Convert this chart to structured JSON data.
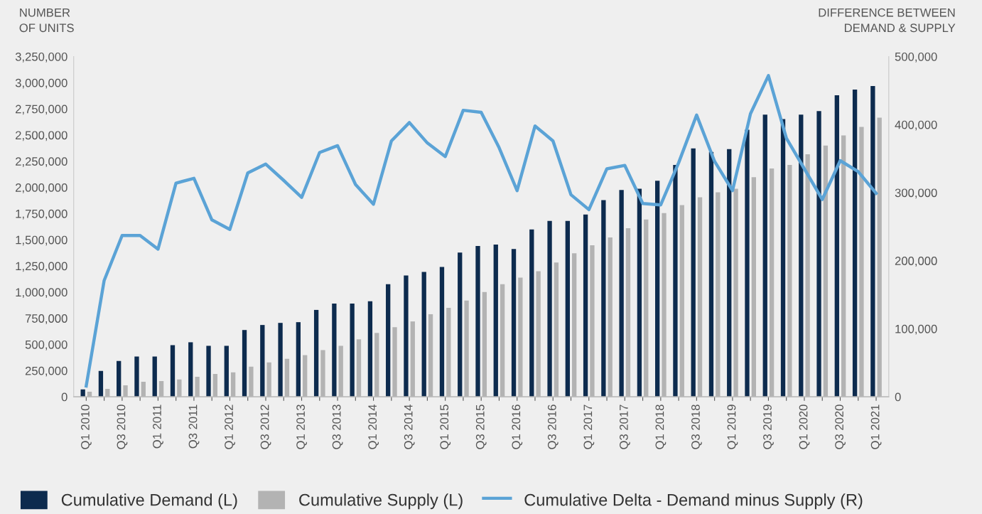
{
  "chart_data": {
    "type": "bar",
    "categories": [
      "Q1 2010",
      null,
      "Q3 2010",
      null,
      "Q1 2011",
      null,
      "Q3 2011",
      null,
      "Q1 2012",
      null,
      "Q3 2012",
      null,
      "Q1 2013",
      null,
      "Q3 2013",
      null,
      "Q1 2014",
      null,
      "Q3 2014",
      null,
      "Q1 2015",
      null,
      "Q3 2015",
      null,
      "Q1 2016",
      null,
      "Q3 2016",
      null,
      "Q1 2017",
      null,
      "Q3 2017",
      null,
      "Q1 2018",
      null,
      "Q3 2018",
      null,
      "Q1 2019",
      null,
      "Q3 2019",
      null,
      "Q1 2020",
      null,
      "Q3 2020",
      null,
      "Q1 2021"
    ],
    "ylabel": "NUMBER\nOF UNITS",
    "y2label": "DIFFERENCE BETWEEN\nDEMAND & SUPPLY",
    "series": [
      {
        "name": "Cumulative Demand (L)",
        "color": "#0d2b4e",
        "values": [
          70000,
          247000,
          343000,
          384000,
          384000,
          494000,
          521000,
          487000,
          487000,
          638000,
          686000,
          706000,
          713000,
          830000,
          891000,
          891000,
          912000,
          1076000,
          1159000,
          1193000,
          1241000,
          1378000,
          1440000,
          1454000,
          1412000,
          1598000,
          1680000,
          1680000,
          1741000,
          1879000,
          1975000,
          1988000,
          2064000,
          2215000,
          2372000,
          2338000,
          2365000,
          2551000,
          2695000,
          2653000,
          2695000,
          2729000,
          2880000,
          2935000,
          2969000
        ]
      },
      {
        "name": "Cumulative Supply (L)",
        "color": "#b3b3b3",
        "values": [
          48000,
          75000,
          110000,
          144000,
          151000,
          165000,
          192000,
          219000,
          233000,
          288000,
          329000,
          363000,
          398000,
          446000,
          487000,
          549000,
          610000,
          665000,
          720000,
          789000,
          850000,
          919000,
          1001000,
          1076000,
          1138000,
          1200000,
          1282000,
          1371000,
          1447000,
          1522000,
          1611000,
          1693000,
          1755000,
          1831000,
          1906000,
          1954000,
          1988000,
          2098000,
          2180000,
          2215000,
          2317000,
          2400000,
          2496000,
          2578000,
          2667000
        ]
      },
      {
        "name": "Cumulative Delta - Demand minus Supply (R)",
        "type": "line",
        "axis": "y2",
        "color": "#5ba3d6",
        "values": [
          16000,
          171000,
          237000,
          237000,
          217000,
          314000,
          321000,
          260000,
          246000,
          329000,
          342000,
          318000,
          293000,
          359000,
          369000,
          312000,
          283000,
          376000,
          403000,
          373000,
          353000,
          421000,
          418000,
          366000,
          303000,
          398000,
          376000,
          297000,
          275000,
          335000,
          340000,
          284000,
          282000,
          344000,
          414000,
          346000,
          303000,
          416000,
          472000,
          380000,
          335000,
          290000,
          347000,
          331000,
          299000
        ]
      }
    ],
    "ylim": [
      0,
      3250000
    ],
    "yticks": [
      0,
      {
        "value": 250000,
        "label": "250,000"
      },
      {
        "value": 500000,
        "label": "500,000"
      },
      {
        "value": 750000,
        "label": "750,000"
      },
      {
        "value": 1000000,
        "label": "1,000,000"
      },
      {
        "value": 1250000,
        "label": "1,250,000"
      },
      {
        "value": 1500000,
        "label": "1,500,000"
      },
      {
        "value": 1750000,
        "label": "1,750,000"
      },
      {
        "value": 2000000,
        "label": "2,000,000"
      },
      {
        "value": 2250000,
        "label": "2,250,000"
      },
      {
        "value": 2500000,
        "label": "2,500,000"
      },
      {
        "value": 2750000,
        "label": "2,750,000"
      },
      {
        "value": 3000000,
        "label": "3,000,000"
      },
      {
        "value": 3250000,
        "label": "3,250,000"
      }
    ],
    "y2lim": [
      0,
      500000
    ],
    "y2ticks": [
      0,
      {
        "value": 100000,
        "label": "100,000"
      },
      {
        "value": 200000,
        "label": "200,000"
      },
      {
        "value": 300000,
        "label": "300,000"
      },
      {
        "value": 400000,
        "label": "400,000"
      },
      {
        "value": 500000,
        "label": "500,000"
      }
    ],
    "grid": false,
    "legend": "bottom",
    "marker": "none",
    "line_style": "solid"
  }
}
